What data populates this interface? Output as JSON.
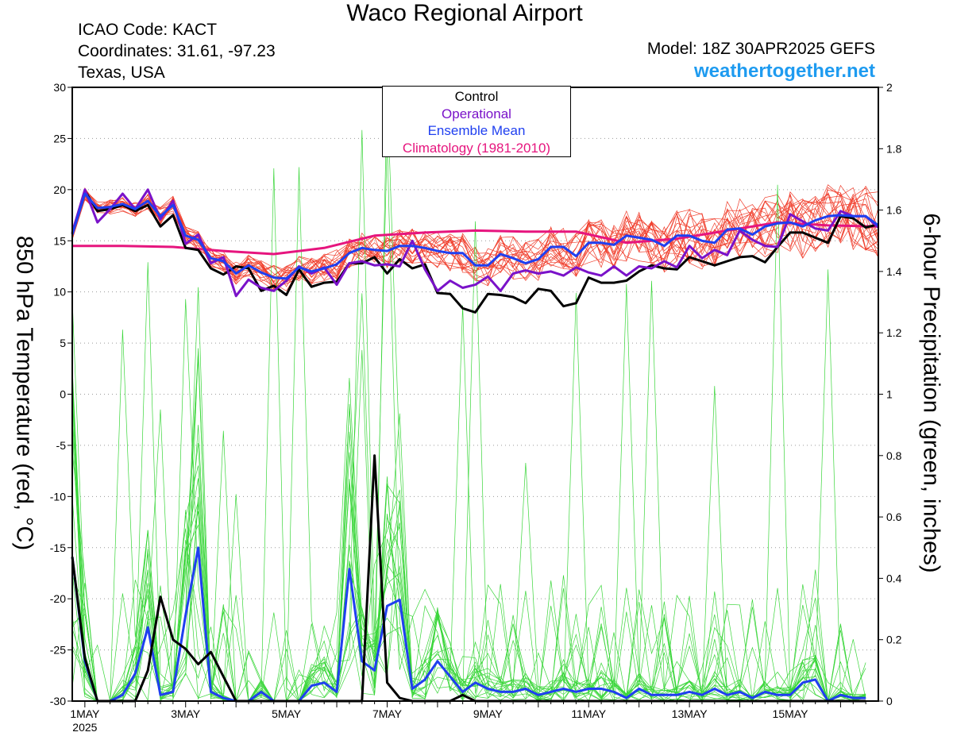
{
  "header": {
    "title": "Waco Regional Airport",
    "icao": "ICAO Code: KACT",
    "coords": "Coordinates: 31.61, -97.23",
    "region": "Texas, USA",
    "model": "Model: 18Z 30APR2025 GEFS",
    "site": "weathertogether.net"
  },
  "chart_data": {
    "type": "line",
    "title": "Waco Regional Airport",
    "ylabel_left": "850 hPa Temperature (red, °C)",
    "ylabel_right": "6-hour Precipitation (green, inches)",
    "ylim_left": [
      -30,
      30
    ],
    "ylim_right": [
      0,
      2
    ],
    "yticks_left": [
      30,
      25,
      20,
      15,
      10,
      5,
      0,
      -5,
      -10,
      -15,
      -20,
      -25,
      -30
    ],
    "yticks_right": [
      "2",
      "1.8",
      "1.6",
      "1.4",
      "1.2",
      "1",
      "0.8",
      "0.6",
      "0.4",
      "0.2",
      "0"
    ],
    "x_label_year": "2025",
    "x_unit": "days after 1MAY 00Z",
    "x_tick_labels": [
      "1MAY",
      "3MAY",
      "5MAY",
      "7MAY",
      "9MAY",
      "11MAY",
      "13MAY",
      "15MAY"
    ],
    "xlim": [
      -0.25,
      15.75
    ],
    "grid": "dotted horizontal",
    "legend": [
      "Control",
      "Operational",
      "Ensemble Mean",
      "Climatology (1981-2010)"
    ],
    "legend_placement": "top-center",
    "colors": {
      "control": "#000000",
      "operational": "#7a12c9",
      "ensemble_mean": "#1f3ff0",
      "climatology": "#e6157e",
      "members_temp": "#f03c2a",
      "members_precip": "#3ad63a",
      "site_link": "#1e9bf0"
    },
    "series": [
      {
        "name": "Climatology (1981-2010)",
        "axis": "left",
        "color": "#e6157e",
        "x": [
          -0.25,
          0.75,
          1.75,
          2.75,
          3.75,
          4.75,
          5.75,
          6.75,
          7.75,
          8.75,
          9.75,
          10.75,
          11.75,
          12.75,
          13.75,
          14.75,
          15.75
        ],
        "values": [
          14.5,
          14.5,
          14.4,
          14.0,
          13.7,
          14.3,
          15.5,
          15.8,
          16.0,
          15.9,
          15.9,
          14.8,
          15.2,
          16.0,
          16.8,
          16.5,
          16.4
        ]
      },
      {
        "name": "Control",
        "axis": "left",
        "color": "#000000",
        "x": [
          -0.25,
          0,
          0.25,
          0.5,
          0.75,
          1,
          1.25,
          1.5,
          1.75,
          2,
          2.25,
          2.5,
          2.75,
          3,
          3.25,
          3.5,
          3.75,
          4,
          4.25,
          4.5,
          4.75,
          5,
          5.25,
          5.5,
          5.75,
          6,
          6.25,
          6.5,
          6.75,
          7,
          7.25,
          7.5,
          7.75,
          8,
          8.25,
          8.5,
          8.75,
          9,
          9.25,
          9.5,
          9.75,
          10,
          10.25,
          10.5,
          10.75,
          11,
          11.25,
          11.5,
          11.75,
          12,
          12.25,
          12.5,
          12.75,
          13,
          13.25,
          13.5,
          13.75,
          14,
          14.25,
          14.5,
          14.75,
          15,
          15.25,
          15.5,
          15.75
        ],
        "values": [
          15.7,
          19.9,
          17.9,
          18.1,
          18.5,
          17.9,
          18.5,
          16.4,
          17.5,
          14.3,
          14.1,
          12.3,
          11.7,
          12.5,
          12.3,
          10.1,
          10.6,
          9.7,
          12.2,
          10.5,
          10.9,
          11.0,
          12.8,
          12.8,
          13.4,
          11.8,
          13.2,
          12.3,
          12.7,
          9.9,
          9.8,
          8.4,
          8.0,
          9.8,
          9.7,
          9.5,
          8.9,
          10.3,
          10.1,
          8.6,
          8.9,
          11.4,
          10.9,
          10.9,
          11.1,
          12.0,
          12.6,
          12.3,
          12.2,
          13.4,
          13.0,
          12.6,
          13.0,
          13.4,
          13.5,
          12.9,
          14.4,
          15.8,
          15.8,
          15.3,
          14.8,
          17.4,
          17.2,
          16.3,
          16.6
        ]
      },
      {
        "name": "Operational",
        "axis": "left",
        "color": "#7a12c9",
        "x": [
          -0.25,
          0,
          0.25,
          0.5,
          0.75,
          1,
          1.25,
          1.5,
          1.75,
          2,
          2.25,
          2.5,
          2.75,
          3,
          3.25,
          3.5,
          3.75,
          4,
          4.25,
          4.5,
          4.75,
          5,
          5.25,
          5.5,
          5.75,
          6,
          6.25,
          6.5,
          6.75,
          7,
          7.25,
          7.5,
          7.75,
          8,
          8.25,
          8.5,
          8.75,
          9,
          9.25,
          9.5,
          9.75,
          10,
          10.25,
          10.5,
          10.75,
          11,
          11.25,
          11.5,
          11.75,
          12,
          12.25,
          12.5,
          12.75,
          13,
          13.25,
          13.5,
          13.75,
          14,
          14.25,
          14.5,
          14.75,
          15,
          15.25,
          15.5,
          15.75
        ],
        "values": [
          15.8,
          20.0,
          16.8,
          18.1,
          19.6,
          18.1,
          20.0,
          17.1,
          18.9,
          14.7,
          15.6,
          12.8,
          13.4,
          9.6,
          11.2,
          10.4,
          10.1,
          11.1,
          12.5,
          11.8,
          12.4,
          10.7,
          12.8,
          13.0,
          12.6,
          12.7,
          12.5,
          15.0,
          12.2,
          10.1,
          11.1,
          10.4,
          10.7,
          11.5,
          10.1,
          11.8,
          12.1,
          11.8,
          12.0,
          11.6,
          12.4,
          11.9,
          11.6,
          12.5,
          11.6,
          12.5,
          12.3,
          13.0,
          12.4,
          14.5,
          13.3,
          14.1,
          13.6,
          16.0,
          15.1,
          14.5,
          14.4,
          17.6,
          16.9,
          16.2,
          16.0,
          17.9,
          17.4,
          17.4,
          16.3
        ]
      },
      {
        "name": "Ensemble Mean",
        "axis": "left",
        "color": "#1f3ff0",
        "x": [
          -0.25,
          0,
          0.25,
          0.5,
          0.75,
          1,
          1.25,
          1.5,
          1.75,
          2,
          2.25,
          2.5,
          2.75,
          3,
          3.25,
          3.5,
          3.75,
          4,
          4.25,
          4.5,
          4.75,
          5,
          5.25,
          5.5,
          5.75,
          6,
          6.25,
          6.5,
          6.75,
          7,
          7.25,
          7.5,
          7.75,
          8,
          8.25,
          8.5,
          8.75,
          9,
          9.25,
          9.5,
          9.75,
          10,
          10.25,
          10.5,
          10.75,
          11,
          11.25,
          11.5,
          11.75,
          12,
          12.25,
          12.5,
          12.75,
          13,
          13.25,
          13.5,
          13.75,
          14,
          14.25,
          14.5,
          14.75,
          15,
          15.25,
          15.5,
          15.75
        ],
        "values": [
          15.6,
          19.6,
          18.2,
          18.3,
          18.6,
          18.1,
          18.9,
          17.4,
          18.5,
          15.5,
          15.1,
          13.3,
          13.0,
          11.8,
          12.6,
          11.9,
          11.4,
          11.3,
          12.4,
          12.0,
          12.3,
          12.7,
          13.8,
          14.3,
          14.1,
          14.0,
          14.5,
          14.5,
          14.3,
          14.0,
          13.8,
          13.8,
          12.6,
          12.6,
          13.7,
          13.3,
          12.8,
          13.2,
          14.4,
          14.4,
          13.5,
          14.8,
          14.8,
          14.6,
          15.5,
          15.3,
          15.1,
          14.5,
          15.5,
          15.5,
          15.0,
          14.8,
          16.1,
          16.2,
          15.6,
          16.4,
          16.7,
          16.8,
          16.4,
          17.0,
          17.4,
          17.5,
          17.4,
          17.4,
          16.5
        ]
      },
      {
        "name": "Ensemble Mean",
        "axis": "right",
        "color": "#1f3ff0",
        "x": [
          -0.25,
          0,
          0.25,
          0.5,
          0.75,
          1,
          1.25,
          1.5,
          1.75,
          2,
          2.25,
          2.5,
          2.75,
          3,
          3.25,
          3.5,
          3.75,
          4,
          4.25,
          4.5,
          4.75,
          5,
          5.25,
          5.5,
          5.75,
          6,
          6.25,
          6.5,
          6.75,
          7,
          7.25,
          7.5,
          7.75,
          8,
          8.25,
          8.5,
          8.75,
          9,
          9.25,
          9.5,
          9.75,
          10,
          10.25,
          10.5,
          10.75,
          11,
          11.25,
          11.5,
          11.75,
          12,
          12.25,
          12.5,
          12.75,
          13,
          13.25,
          13.5,
          13.75,
          14,
          14.25,
          14.5,
          14.75,
          15,
          15.25,
          15.5
        ],
        "values": [
          0.47,
          0.13,
          0.0,
          0.0,
          0.02,
          0.09,
          0.24,
          0.02,
          0.03,
          0.28,
          0.5,
          0.03,
          0.01,
          0.0,
          0.0,
          0.03,
          0.0,
          0.0,
          0.0,
          0.05,
          0.06,
          0.03,
          0.43,
          0.13,
          0.1,
          0.31,
          0.33,
          0.04,
          0.07,
          0.13,
          0.08,
          0.03,
          0.06,
          0.04,
          0.03,
          0.03,
          0.04,
          0.02,
          0.03,
          0.04,
          0.03,
          0.04,
          0.04,
          0.03,
          0.01,
          0.04,
          0.02,
          0.02,
          0.02,
          0.03,
          0.02,
          0.04,
          0.02,
          0.03,
          0.01,
          0.03,
          0.02,
          0.02,
          0.06,
          0.07,
          0.0,
          0.02,
          0.01,
          0.01
        ]
      },
      {
        "name": "Control",
        "axis": "right",
        "color": "#000000",
        "x": [
          -0.25,
          0,
          0.25,
          0.5,
          0.75,
          1,
          1.25,
          1.5,
          1.75,
          2,
          2.25,
          2.5,
          2.75,
          3,
          3.25,
          3.5,
          3.75,
          4,
          4.25,
          4.5,
          4.75,
          5,
          5.25,
          5.5,
          5.75,
          6,
          6.25,
          6.5,
          6.75,
          7,
          7.25,
          7.5,
          7.75,
          8,
          8.25,
          8.5,
          8.75,
          9,
          9.25,
          9.5,
          9.75,
          10,
          10.25,
          10.5,
          10.75,
          11,
          11.25,
          11.5,
          11.75,
          12,
          12.25,
          12.5,
          12.75,
          13,
          13.25,
          13.5,
          13.75,
          14,
          14.25,
          14.5,
          14.75,
          15,
          15.25,
          15.5
        ],
        "values": [
          0.47,
          0.14,
          0.0,
          0.0,
          0.0,
          0.0,
          0.1,
          0.34,
          0.2,
          0.17,
          0.12,
          0.16,
          0.08,
          0.0,
          0.0,
          0.0,
          0.0,
          0.0,
          0.0,
          0.0,
          0.0,
          0.0,
          0.0,
          0.0,
          0.8,
          0.06,
          0.01,
          0.0,
          0.0,
          0.0,
          0.0,
          0.02,
          0.0,
          0.0,
          0.0,
          0.0,
          0.0,
          0.0,
          0.0,
          0.0,
          0.0,
          0.0,
          0.0,
          0.0,
          0.0,
          0.0,
          0.0,
          0.0,
          0.0,
          0.0,
          0.0,
          0.0,
          0.0,
          0.0,
          0.0,
          0.0,
          0.0,
          0.0,
          0.0,
          0.0,
          0.0,
          0.0,
          0.0,
          0.0
        ]
      }
    ]
  }
}
